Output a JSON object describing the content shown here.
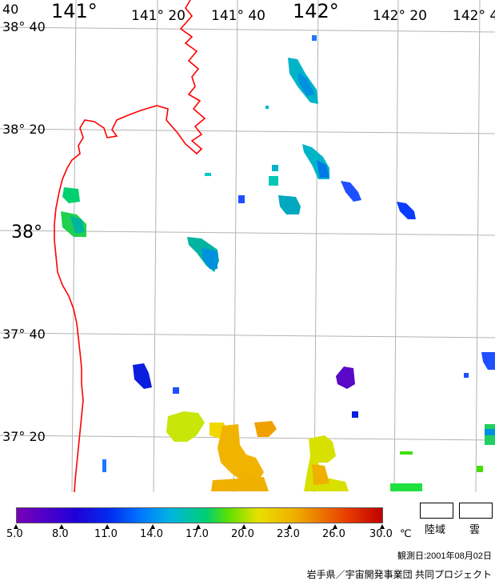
{
  "map": {
    "lon_labels": [
      {
        "text": "141°",
        "size": "big"
      },
      {
        "text": "141° 20",
        "size": "small"
      },
      {
        "text": "141° 40",
        "size": "small"
      },
      {
        "text": "142°",
        "size": "big"
      },
      {
        "text": "142° 20",
        "size": "small"
      },
      {
        "text": "142° 4",
        "size": "small"
      }
    ],
    "lat_labels": [
      {
        "text": "38° 40",
        "size": "small"
      },
      {
        "text": "38° 20",
        "size": "small"
      },
      {
        "text": "38°",
        "size": "big"
      },
      {
        "text": "37° 40",
        "size": "small"
      },
      {
        "text": "37° 20",
        "size": "small"
      }
    ],
    "corner_label": "40",
    "coastline_color": "#ff0000",
    "grid_color": "#b4b4b4"
  },
  "legend": {
    "unit": "℃",
    "ticks": [
      "5.0",
      "8.0",
      "11.0",
      "14.0",
      "17.0",
      "20.0",
      "23.0",
      "26.0",
      "30.0"
    ],
    "land_label": "陸域",
    "cloud_label": "雲",
    "colors": [
      "#7a00b8",
      "#1a00d0",
      "#0050ff",
      "#00b0e0",
      "#00d070",
      "#60e000",
      "#e8e000",
      "#f0a000",
      "#e03000",
      "#c00000"
    ]
  },
  "observation": "観測日:2001年08月02日",
  "credit": "岩手県／宇宙開発事業団 共同プロジェクト"
}
